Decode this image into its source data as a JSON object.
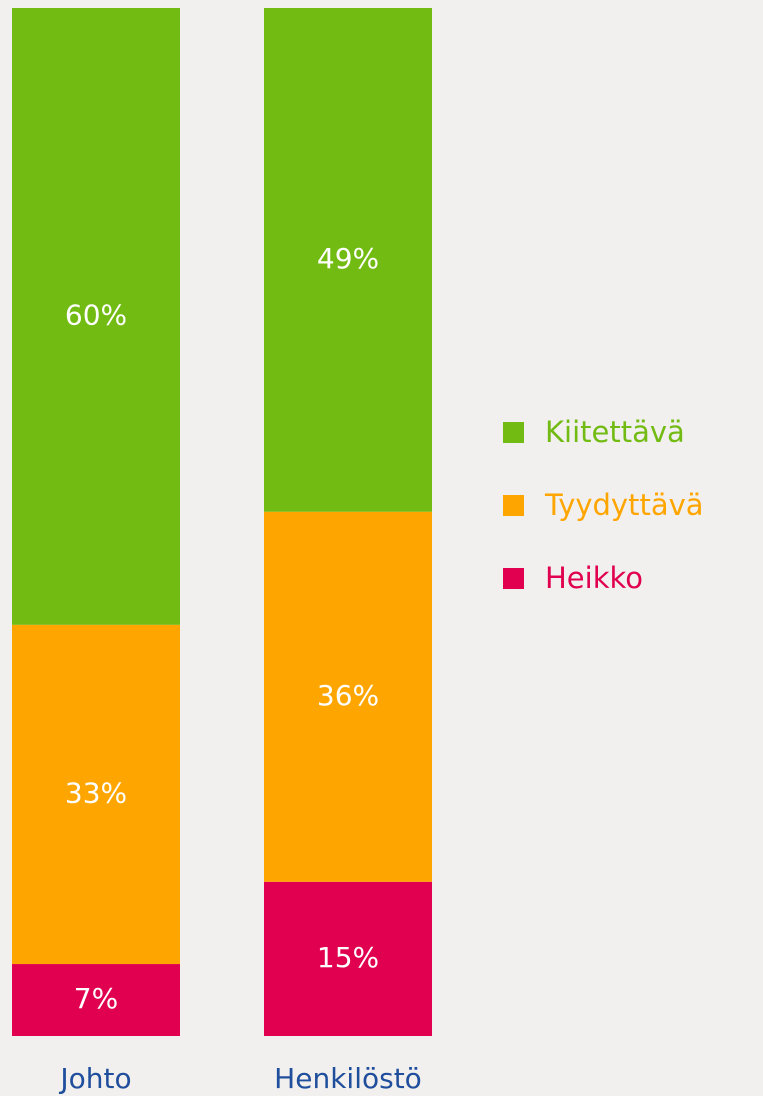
{
  "chart_data": {
    "type": "stacked-bar",
    "categories": [
      "Johto",
      "Henkilöstö"
    ],
    "series": [
      {
        "name": "Kiitettävä",
        "color": "#72bb13",
        "values": [
          60,
          49
        ],
        "value_labels": [
          "60%",
          "49%"
        ]
      },
      {
        "name": "Tyydyttävä",
        "color": "#ffa500",
        "values": [
          33,
          36
        ],
        "value_labels": [
          "33%",
          "36%"
        ]
      },
      {
        "name": "Heikko",
        "color": "#e0004f",
        "values": [
          7,
          15
        ],
        "value_labels": [
          "7%",
          "15%"
        ]
      }
    ],
    "ylim": [
      0,
      100
    ],
    "legend": "right"
  }
}
